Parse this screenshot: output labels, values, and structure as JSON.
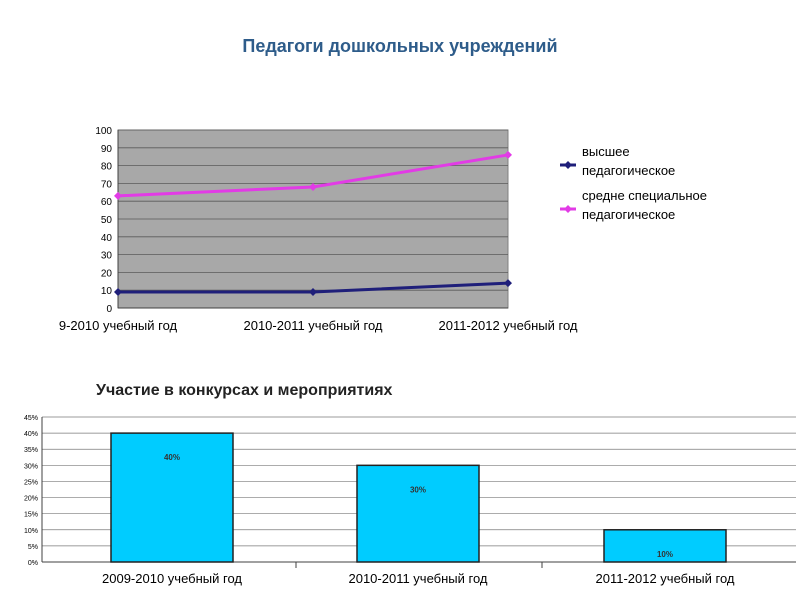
{
  "page": {
    "title1": "Педагоги дошкольных учреждений",
    "title2": "Участие в конкурсах и мероприятиях"
  },
  "chart_data": [
    {
      "type": "line",
      "title": "Педагоги дошкольных учреждений",
      "categories": [
        "9-2010 учебный год",
        "2010-2011 учебный год",
        "2011-2012 учебный год"
      ],
      "series": [
        {
          "name": "высшее педагогическое",
          "values": [
            9,
            9,
            14
          ],
          "color": "#1F1F7A"
        },
        {
          "name": "средне специальное педагогическое",
          "values": [
            63,
            68,
            86
          ],
          "color": "#E23BE6"
        }
      ],
      "ylim": [
        0,
        100
      ],
      "yticks": [
        0,
        10,
        20,
        30,
        40,
        50,
        60,
        70,
        80,
        90,
        100
      ],
      "grid": true,
      "legend": "right",
      "plot_background": "#A8A8A8"
    },
    {
      "type": "bar",
      "title": "Участие в конкурсах и мероприятиях",
      "categories": [
        "2009-2010 учебный год",
        "2010-2011 учебный год",
        "2011-2012 учебный год"
      ],
      "values": [
        40,
        30,
        10
      ],
      "data_labels": [
        "40%",
        "30%",
        "10%"
      ],
      "ylim": [
        0,
        45
      ],
      "yticks": [
        "0%",
        "5%",
        "10%",
        "15%",
        "20%",
        "25%",
        "30%",
        "35%",
        "40%",
        "45%"
      ],
      "grid": true,
      "bar_color": "#00CCFF"
    }
  ]
}
